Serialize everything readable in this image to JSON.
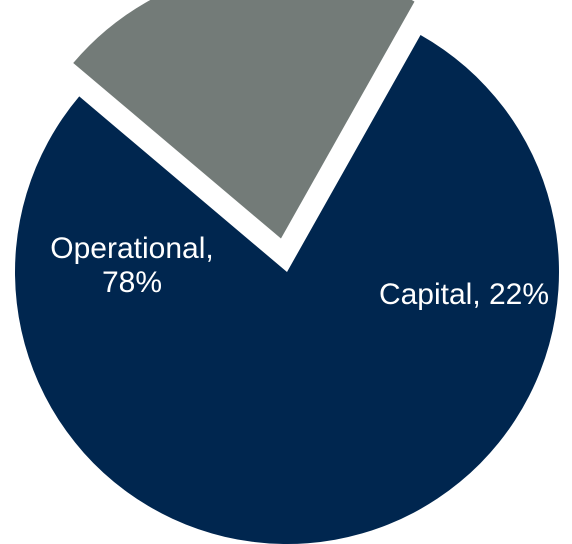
{
  "chart_data": {
    "type": "pie",
    "slices": [
      {
        "label": "Operational",
        "value": 78,
        "display": [
          "Operational,",
          "78%"
        ],
        "color": "#00264f",
        "exploded": false
      },
      {
        "label": "Capital",
        "value": 22,
        "display": [
          "Capital, 22%"
        ],
        "color": "#737b78",
        "exploded": true
      }
    ],
    "title": "",
    "legend": "none"
  }
}
